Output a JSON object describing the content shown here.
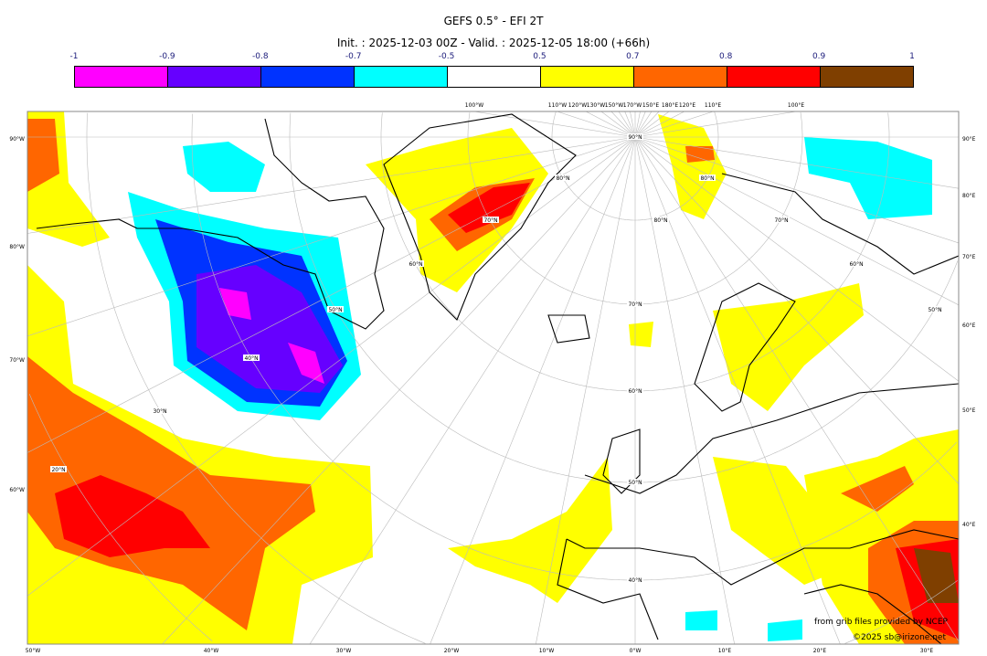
{
  "title": "GEFS 0.5° - EFI 2T",
  "subtitle": "Init. : 2025-12-03 00Z - Valid. : 2025-12-05 18:00 (+66h)",
  "colorbar": {
    "ticks": [
      "-1",
      "-0.9",
      "-0.8",
      "-0.7",
      "-0.5",
      "0.5",
      "0.7",
      "0.8",
      "0.9",
      "1"
    ],
    "colors": [
      "#ff00ff",
      "#6600ff",
      "#0033ff",
      "#00ffff",
      "#ffffff",
      "#ffff00",
      "#ff6600",
      "#ff0000",
      "#7f3f00"
    ]
  },
  "axes": {
    "left": [
      "90°W",
      "80°W",
      "70°W",
      "60°W"
    ],
    "right": [
      "90°E",
      "80°E",
      "70°E",
      "60°E",
      "50°E",
      "40°E"
    ],
    "bottom": [
      "50°W",
      "40°W",
      "30°W",
      "20°W",
      "10°W",
      "0°W",
      "10°E",
      "20°E",
      "30°E"
    ],
    "top": [
      "100°W",
      "110°W",
      "120°W",
      "130°W",
      "150°W",
      "170°W",
      "150°E",
      "180°E",
      "120°E",
      "110°E",
      "100°E"
    ]
  },
  "lat_labels": [
    "90°N",
    "80°N",
    "70°N",
    "60°N",
    "50°N",
    "40°N",
    "80°N",
    "70°N",
    "60°N",
    "50°N",
    "40°N",
    "30°N",
    "20°N",
    "80°N",
    "70°N",
    "60°N",
    "50°N"
  ],
  "credit1": "from grib files provided by NCEP",
  "credit2": "©2025 sb@irizone.net"
}
